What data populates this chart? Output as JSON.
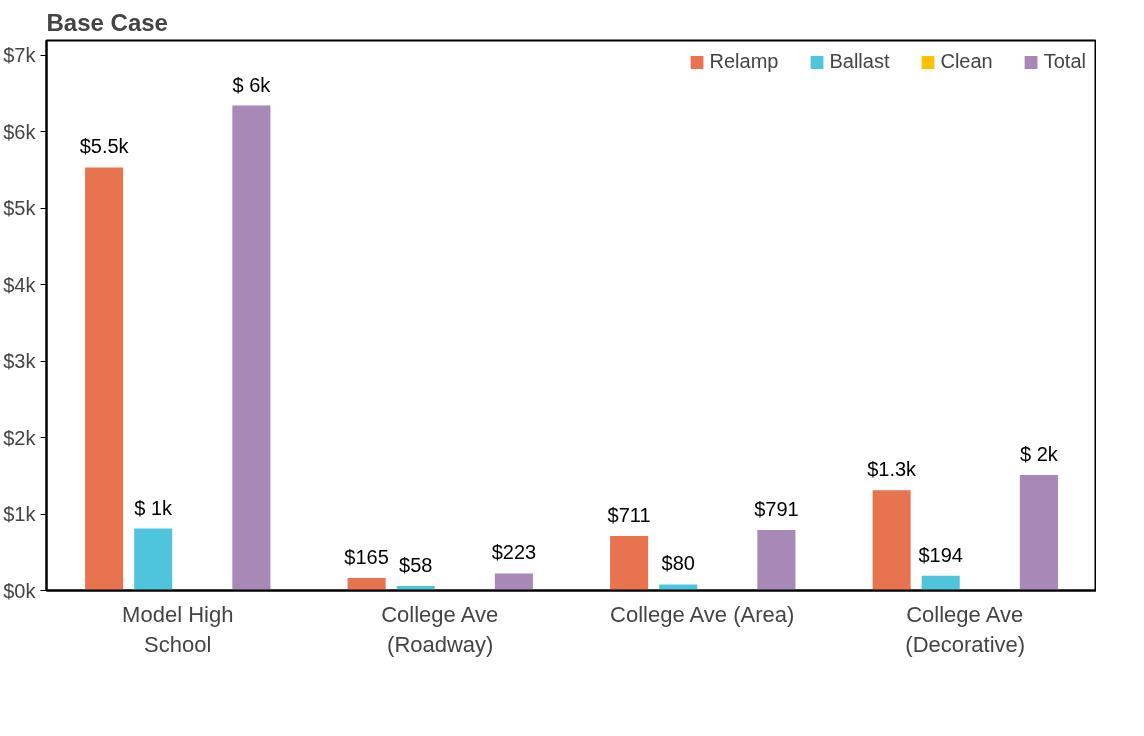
{
  "chart_data": {
    "type": "bar",
    "title": "Base Case",
    "categories": [
      "Model High\nSchool",
      "College Ave\n(Roadway)",
      "College Ave (Area)",
      "College Ave\n(Decorative)"
    ],
    "series": [
      {
        "name": "Relamp",
        "color": "#e8734f",
        "values": [
          5530,
          165,
          711,
          1310
        ],
        "value_labels": [
          "$5.5k",
          "$165",
          "$711",
          "$1.3k"
        ]
      },
      {
        "name": "Ballast",
        "color": "#4ec5dc",
        "values": [
          810,
          58,
          80,
          194
        ],
        "value_labels": [
          "$ 1k",
          "$58",
          "$80",
          "$194"
        ]
      },
      {
        "name": "Clean",
        "color": "#ffc000",
        "values": [
          0,
          0,
          0,
          0
        ],
        "value_labels": [
          null,
          null,
          null,
          null
        ]
      },
      {
        "name": "Total",
        "color": "#a888b6",
        "values": [
          6340,
          223,
          791,
          1510
        ],
        "value_labels": [
          "$ 6k",
          "$223",
          "$791",
          "$ 2k"
        ]
      }
    ],
    "ylim": [
      0,
      7190
    ],
    "yticks": [
      {
        "value": 0,
        "label": "$0k"
      },
      {
        "value": 1000,
        "label": "$1k"
      },
      {
        "value": 2000,
        "label": "$2k"
      },
      {
        "value": 3000,
        "label": "$3k"
      },
      {
        "value": 4000,
        "label": "$4k"
      },
      {
        "value": 5000,
        "label": "$5k"
      },
      {
        "value": 6000,
        "label": "$6k"
      },
      {
        "value": 7000,
        "label": "$7k"
      }
    ],
    "grid": false,
    "legend": "top right"
  }
}
